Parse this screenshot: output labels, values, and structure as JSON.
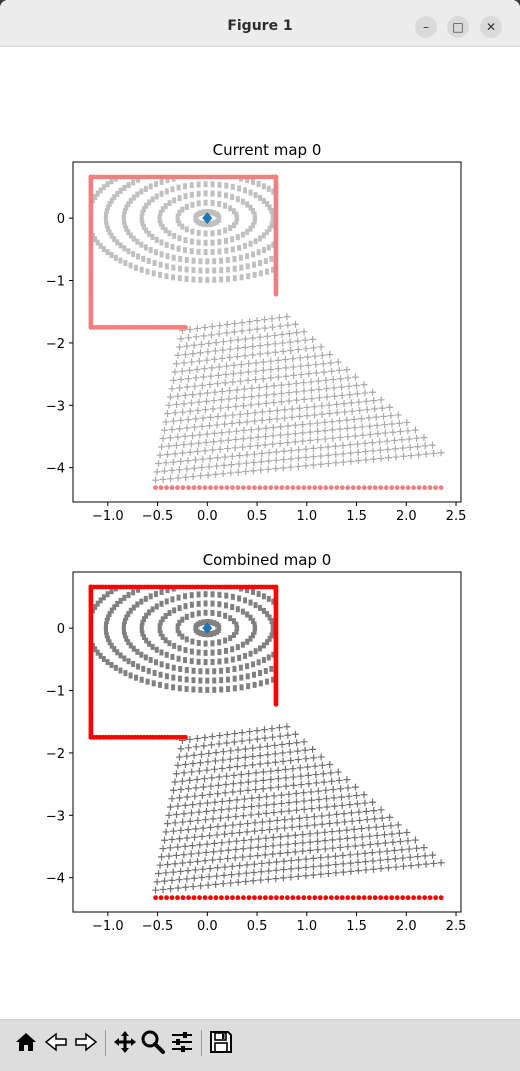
{
  "window": {
    "title": "Figure 1",
    "controls": {
      "minimize": "–",
      "maximize": "□",
      "close": "✕"
    }
  },
  "chart_data": [
    {
      "type": "scatter",
      "title": "Current map 0",
      "xlim": [
        -1.35,
        2.55
      ],
      "ylim": [
        -4.55,
        0.9
      ],
      "xticks": [
        -1.0,
        -0.5,
        0.0,
        0.5,
        1.0,
        1.5,
        2.0,
        2.5
      ],
      "xticklabels": [
        "−1.0",
        "−0.5",
        "0.0",
        "0.5",
        "1.0",
        "1.5",
        "2.0",
        "2.5"
      ],
      "yticks": [
        0,
        -1,
        -2,
        -3,
        -4
      ],
      "yticklabels": [
        "0",
        "−1",
        "−2",
        "−3",
        "−4"
      ],
      "center": {
        "x": 0.0,
        "y": 0.0,
        "marker": "diamond",
        "color": "#1f77b4"
      },
      "rings": {
        "center": [
          0.0,
          0.0
        ],
        "radii_x": [
          0.12,
          0.3,
          0.48,
          0.66,
          0.84,
          1.02,
          1.2
        ],
        "y_scale": 0.55,
        "color": "#c0c0c0"
      },
      "fan": {
        "origin": [
          -0.7,
          -1.2
        ],
        "rows": 19,
        "y_start": -1.8,
        "y_end": -4.2,
        "x_left_start": -0.25,
        "x_left_end": -0.52,
        "x_right_start": 0.8,
        "x_right_end": 2.35,
        "marker": "+",
        "color": "#a9a9a9"
      },
      "boundary": {
        "color": "#f08080",
        "box": {
          "xmin": -1.17,
          "xmax": 0.69,
          "ymin": -1.75,
          "ymax": 0.66,
          "notch_x": -0.22,
          "notch_y": -1.22
        },
        "bottom_row": {
          "y": -4.32,
          "xmin": -0.52,
          "xmax": 2.35
        }
      }
    },
    {
      "type": "scatter",
      "title": "Combined map 0",
      "xlim": [
        -1.35,
        2.55
      ],
      "ylim": [
        -4.55,
        0.9
      ],
      "xticks": [
        -1.0,
        -0.5,
        0.0,
        0.5,
        1.0,
        1.5,
        2.0,
        2.5
      ],
      "xticklabels": [
        "−1.0",
        "−0.5",
        "0.0",
        "0.5",
        "1.0",
        "1.5",
        "2.0",
        "2.5"
      ],
      "yticks": [
        0,
        -1,
        -2,
        -3,
        -4
      ],
      "yticklabels": [
        "0",
        "−1",
        "−2",
        "−3",
        "−4"
      ],
      "center": {
        "x": 0.0,
        "y": 0.0,
        "marker": "diamond",
        "color": "#1f77b4"
      },
      "rings": {
        "center": [
          0.0,
          0.0
        ],
        "radii_x": [
          0.12,
          0.3,
          0.48,
          0.66,
          0.84,
          1.02,
          1.2
        ],
        "y_scale": 0.55,
        "color": "#808080"
      },
      "fan": {
        "origin": [
          -0.7,
          -1.2
        ],
        "rows": 19,
        "y_start": -1.8,
        "y_end": -4.2,
        "x_left_start": -0.25,
        "x_left_end": -0.52,
        "x_right_start": 0.8,
        "x_right_end": 2.35,
        "marker": "+",
        "color": "#707070"
      },
      "boundary": {
        "color": "#ff0000",
        "box": {
          "xmin": -1.17,
          "xmax": 0.69,
          "ymin": -1.75,
          "ymax": 0.66,
          "notch_x": -0.22,
          "notch_y": -1.22
        },
        "bottom_row": {
          "y": -4.32,
          "xmin": -0.52,
          "xmax": 2.35
        }
      }
    }
  ],
  "toolbar": {
    "buttons": [
      {
        "icon": "home-icon",
        "label": "Home"
      },
      {
        "icon": "back-icon",
        "label": "Back"
      },
      {
        "icon": "forward-icon",
        "label": "Forward"
      },
      {
        "icon": "pan-icon",
        "label": "Pan"
      },
      {
        "icon": "zoom-icon",
        "label": "Zoom"
      },
      {
        "icon": "configure-subplots-icon",
        "label": "Subplots"
      },
      {
        "icon": "save-icon",
        "label": "Save"
      }
    ]
  }
}
